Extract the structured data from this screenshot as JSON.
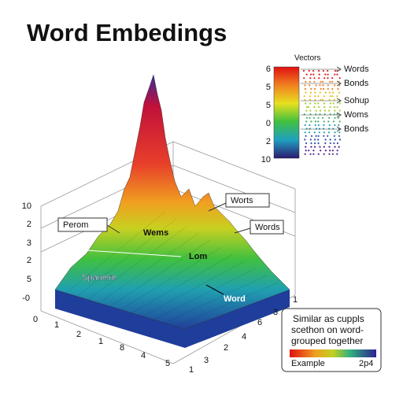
{
  "header": {
    "title": "Word Embedings"
  },
  "legend": {
    "title": "Vectors",
    "scale_labels": [
      "6",
      "5",
      "5",
      "0",
      "2",
      "10"
    ],
    "items": [
      "Words",
      "Bonds",
      "Sohup",
      "Woms",
      "Bonds"
    ]
  },
  "axes": {
    "left": [
      "10",
      "2",
      "3",
      "2",
      "5",
      "-0"
    ],
    "front_left": [
      "0",
      "1",
      "2",
      "1",
      "8",
      "4",
      "5"
    ],
    "front_right": [
      "1",
      "3",
      "6",
      "4",
      "2",
      "3",
      "1"
    ]
  },
  "annotations": [
    "Perom",
    "Wems",
    "Worts",
    "Words",
    "Lom",
    "Spanelre",
    "Word"
  ],
  "caption": {
    "lines": [
      "Similar as cuppls",
      "scethon on word-",
      "grouped together"
    ],
    "left_label": "Example",
    "right_label": "2p4"
  }
}
